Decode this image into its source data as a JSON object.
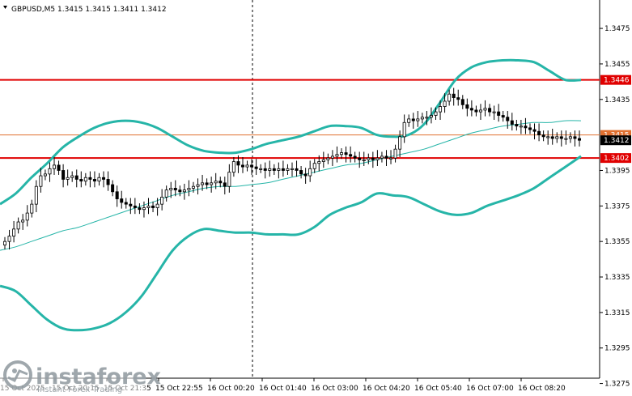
{
  "chart_data": {
    "type": "candlestick",
    "symbol_header": "GBPUSD,M5  1.3415 1.3415 1.3411 1.3412",
    "ylim": [
      1.3278,
      1.3491
    ],
    "y_ticks": [
      "1.3475",
      "1.3455",
      "1.3435",
      "1.3395",
      "1.3375",
      "1.3355",
      "1.3335",
      "1.3315",
      "1.3295",
      "1.3275"
    ],
    "x_ticks": [
      "15 Oct 2025",
      "15 Oct 20:15",
      "15 Oct 21:35",
      "15 Oct 22:55",
      "16 Oct 00:20",
      "16 Oct 01:40",
      "16 Oct 03:00",
      "16 Oct 04:20",
      "16 Oct 05:40",
      "16 Oct 07:00",
      "16 Oct 08:20"
    ],
    "levels": [
      {
        "price": 1.3446,
        "label": "1.3446",
        "color": "#e00000"
      },
      {
        "price": 1.3402,
        "label": "1.3402",
        "color": "#e00000"
      }
    ],
    "current_price": {
      "price": 1.3412,
      "label": "1.3412"
    },
    "bid_line": {
      "price": 1.3415,
      "label": "1.3415",
      "color": "#e07030"
    },
    "band_color": "#26b5a8",
    "candles_close": [
      1.3355,
      1.3358,
      1.3362,
      1.3366,
      1.3367,
      1.3371,
      1.3376,
      1.3386,
      1.3392,
      1.3393,
      1.3396,
      1.3398,
      1.3395,
      1.339,
      1.3391,
      1.3392,
      1.339,
      1.3389,
      1.3391,
      1.339,
      1.3389,
      1.3391,
      1.339,
      1.3387,
      1.3383,
      1.3379,
      1.3377,
      1.3376,
      1.3375,
      1.3374,
      1.3373,
      1.3374,
      1.3375,
      1.3374,
      1.3376,
      1.338,
      1.3384,
      1.3385,
      1.3384,
      1.3383,
      1.3384,
      1.3385,
      1.3386,
      1.3387,
      1.3388,
      1.3387,
      1.3388,
      1.3389,
      1.3388,
      1.3386,
      1.3394,
      1.34,
      1.3398,
      1.3397,
      1.3398,
      1.3397,
      1.3396,
      1.3396,
      1.3395,
      1.3396,
      1.3395,
      1.3396,
      1.3395,
      1.3396,
      1.3396,
      1.3395,
      1.3393,
      1.3392,
      1.3396,
      1.3399,
      1.34,
      1.3401,
      1.3402,
      1.3403,
      1.3404,
      1.3405,
      1.3404,
      1.3403,
      1.3402,
      1.3401,
      1.3401,
      1.3402,
      1.3401,
      1.3402,
      1.3403,
      1.3402,
      1.3402,
      1.3407,
      1.3414,
      1.3422,
      1.3424,
      1.3423,
      1.3424,
      1.3425,
      1.3425,
      1.3426,
      1.3428,
      1.3431,
      1.3434,
      1.3438,
      1.3436,
      1.3435,
      1.3432,
      1.343,
      1.3429,
      1.3428,
      1.3429,
      1.343,
      1.3428,
      1.3428,
      1.3426,
      1.3425,
      1.3423,
      1.3421,
      1.342,
      1.342,
      1.3419,
      1.3418,
      1.3417,
      1.3415,
      1.3414,
      1.3414,
      1.3413,
      1.3414,
      1.3413,
      1.3413,
      1.3414,
      1.3413,
      1.3412
    ],
    "bb_upper": [
      1.3376,
      1.3382,
      1.3391,
      1.3399,
      1.3408,
      1.3414,
      1.3419,
      1.3422,
      1.3423,
      1.3422,
      1.3419,
      1.3414,
      1.3409,
      1.3406,
      1.3405,
      1.3405,
      1.3407,
      1.341,
      1.3412,
      1.3414,
      1.3417,
      1.342,
      1.342,
      1.3419,
      1.3415,
      1.3414,
      1.3415,
      1.3421,
      1.3433,
      1.3446,
      1.3453,
      1.3456,
      1.3457,
      1.3457,
      1.3456,
      1.3451,
      1.3446,
      1.3446
    ],
    "bb_mid": [
      1.335,
      1.3352,
      1.3355,
      1.3358,
      1.3361,
      1.3363,
      1.3366,
      1.3369,
      1.3372,
      1.3375,
      1.3378,
      1.3381,
      1.3383,
      1.3385,
      1.3386,
      1.3386,
      1.3387,
      1.3388,
      1.339,
      1.3392,
      1.3394,
      1.3396,
      1.3398,
      1.3399,
      1.3401,
      1.3403,
      1.3405,
      1.3407,
      1.341,
      1.3413,
      1.3416,
      1.3418,
      1.342,
      1.3421,
      1.3422,
      1.3422,
      1.3423,
      1.3423
    ],
    "bb_lower": [
      1.333,
      1.3327,
      1.3319,
      1.3311,
      1.3306,
      1.3305,
      1.3306,
      1.3309,
      1.3315,
      1.3324,
      1.3337,
      1.335,
      1.3358,
      1.3362,
      1.3361,
      1.336,
      1.336,
      1.3359,
      1.3359,
      1.3359,
      1.3363,
      1.337,
      1.3374,
      1.3377,
      1.3382,
      1.3381,
      1.338,
      1.3376,
      1.3372,
      1.337,
      1.3371,
      1.3375,
      1.3378,
      1.3381,
      1.3385,
      1.3391,
      1.3397,
      1.3403
    ]
  },
  "watermark": {
    "brand": "instaforex",
    "tagline": "Instant Forex Trading"
  },
  "colors": {
    "candle": "#000000",
    "axis": "#000000",
    "grid_marker": "#000000"
  }
}
